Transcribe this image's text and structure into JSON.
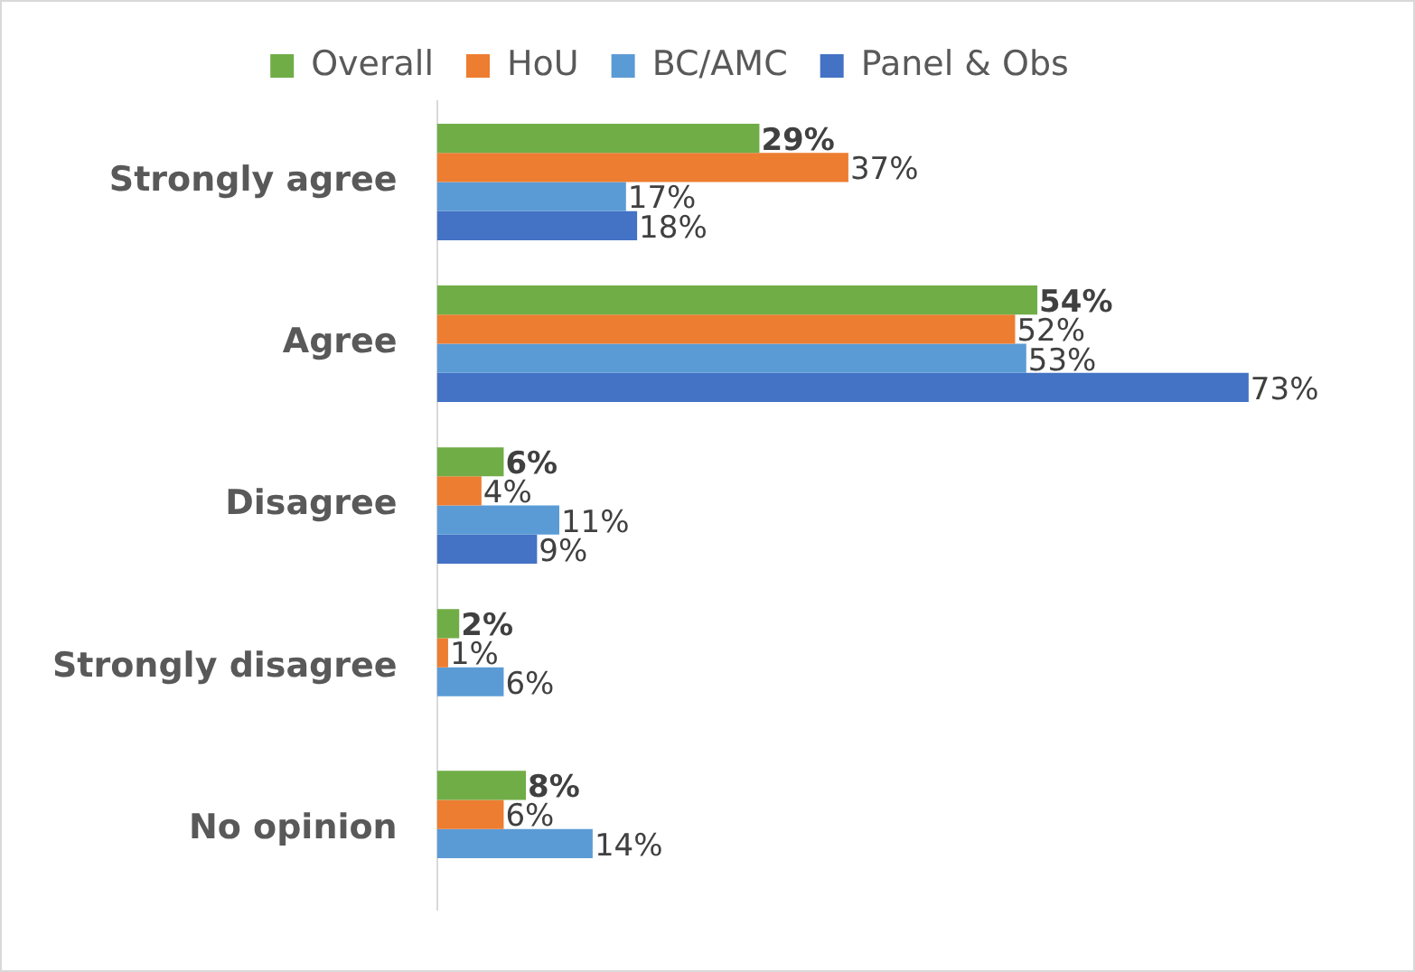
{
  "chart_data": {
    "type": "bar",
    "orientation": "horizontal",
    "categories": [
      "Strongly agree",
      "Agree",
      "Disagree",
      "Strongly disagree",
      "No opinion"
    ],
    "series": [
      {
        "name": "Overall",
        "color": "#70ad47",
        "values": [
          29,
          54,
          6,
          2,
          8
        ],
        "value_labels": [
          "29%",
          "54%",
          "6%",
          "2%",
          "8%"
        ]
      },
      {
        "name": "HoU",
        "color": "#ed7d31",
        "values": [
          37,
          52,
          4,
          1,
          6
        ],
        "value_labels": [
          "37%",
          "52%",
          "4%",
          "1%",
          "6%"
        ]
      },
      {
        "name": "BC/AMC",
        "color": "#5b9bd5",
        "values": [
          17,
          53,
          11,
          6,
          14
        ],
        "value_labels": [
          "17%",
          "53%",
          "11%",
          "6%",
          "14%"
        ]
      },
      {
        "name": "Panel & Obs",
        "color": "#4472c4",
        "values": [
          18,
          73,
          9,
          null,
          null
        ],
        "value_labels": [
          "18%",
          "73%",
          "9%",
          null,
          null
        ]
      }
    ],
    "tick_labels": "y",
    "legend": "top"
  }
}
